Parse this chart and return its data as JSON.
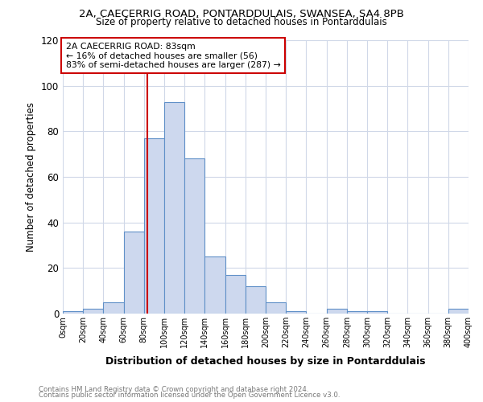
{
  "title_line1": "2A, CAECERRIG ROAD, PONTARDDULAIS, SWANSEA, SA4 8PB",
  "title_line2": "Size of property relative to detached houses in Pontarddulais",
  "xlabel": "Distribution of detached houses by size in Pontarddulais",
  "ylabel": "Number of detached properties",
  "bin_edges": [
    0,
    20,
    40,
    60,
    80,
    100,
    120,
    140,
    160,
    180,
    200,
    220,
    240,
    260,
    280,
    300,
    320,
    340,
    360,
    380,
    400
  ],
  "bar_heights": [
    1,
    2,
    5,
    36,
    77,
    93,
    68,
    25,
    17,
    12,
    5,
    1,
    0,
    2,
    1,
    1,
    0,
    0,
    0,
    2
  ],
  "bar_facecolor": "#cdd8ee",
  "bar_edgecolor": "#6090c8",
  "vline_x": 83,
  "vline_color": "#cc0000",
  "annotation_title": "2A CAECERRIG ROAD: 83sqm",
  "annotation_line1": "← 16% of detached houses are smaller (56)",
  "annotation_line2": "83% of semi-detached houses are larger (287) →",
  "annotation_box_edgecolor": "#cc0000",
  "annotation_box_facecolor": "#ffffff",
  "ylim": [
    0,
    120
  ],
  "yticks": [
    0,
    20,
    40,
    60,
    80,
    100,
    120
  ],
  "footer_line1": "Contains HM Land Registry data © Crown copyright and database right 2024.",
  "footer_line2": "Contains public sector information licensed under the Open Government Licence v3.0.",
  "bg_color": "#ffffff",
  "plot_bg_color": "#ffffff",
  "grid_color": "#d0d8e8"
}
